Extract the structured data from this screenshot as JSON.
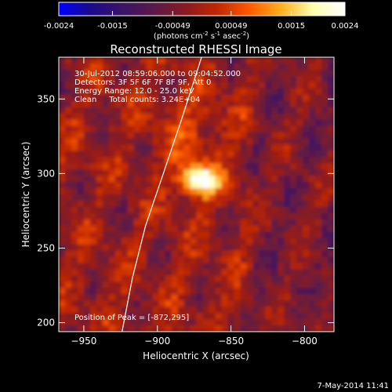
{
  "colorbar": {
    "ticks": [
      "-0.0024",
      "-0.0015",
      "-0.00049",
      "0.00049",
      "0.0015",
      "0.0024"
    ],
    "tick_values": [
      -0.0024,
      -0.0015,
      -0.00049,
      0.00049,
      0.0015,
      0.0024
    ],
    "range": [
      -0.0024,
      0.0024
    ],
    "unit_main": "(photons cm",
    "unit_sup1": "-2",
    "unit_mid1": " s",
    "unit_sup2": "-1",
    "unit_mid2": " asec",
    "unit_sup3": "-2",
    "unit_end": ")",
    "colormap": [
      "#0000ff",
      "#1a0a8a",
      "#3a1466",
      "#5a1a4a",
      "#8a1a20",
      "#c02800",
      "#ff5a00",
      "#ffb020",
      "#ffffb0",
      "#ffffff"
    ]
  },
  "chart_data": {
    "type": "heatmap",
    "title": "Reconstructed RHESSI Image",
    "xlabel": "Heliocentric X (arcsec)",
    "ylabel": "Heliocentric Y (arcsec)",
    "xlim": [
      -967,
      -780
    ],
    "ylim": [
      194,
      378
    ],
    "xticks": [
      -950,
      -900,
      -850,
      -800
    ],
    "yticks": [
      200,
      250,
      300,
      350
    ],
    "xtick_labels": [
      "−950",
      "−900",
      "−850",
      "−800"
    ],
    "ytick_labels": [
      "200",
      "250",
      "300",
      "350"
    ],
    "annotations": [
      "30-Jul-2012 08:59:06.000 to 09:04:52.000",
      "Detectors: 3F 5F 6F 7F 8F 9F, Att 0",
      "Energy Range: 12.0 - 25.0 keV",
      "Clean     Total counts: 3.24E+04"
    ],
    "peak_label": "Position of Peak = [-872,295]",
    "peak": {
      "x": -872,
      "y": 295
    },
    "limb": [
      [
        -924,
        194
      ],
      [
        -917,
        230
      ],
      [
        -908,
        265
      ],
      [
        -896,
        300
      ],
      [
        -884,
        335
      ],
      [
        -870,
        378
      ]
    ]
  },
  "footer": {
    "timestamp": "7-May-2014 11:41"
  }
}
